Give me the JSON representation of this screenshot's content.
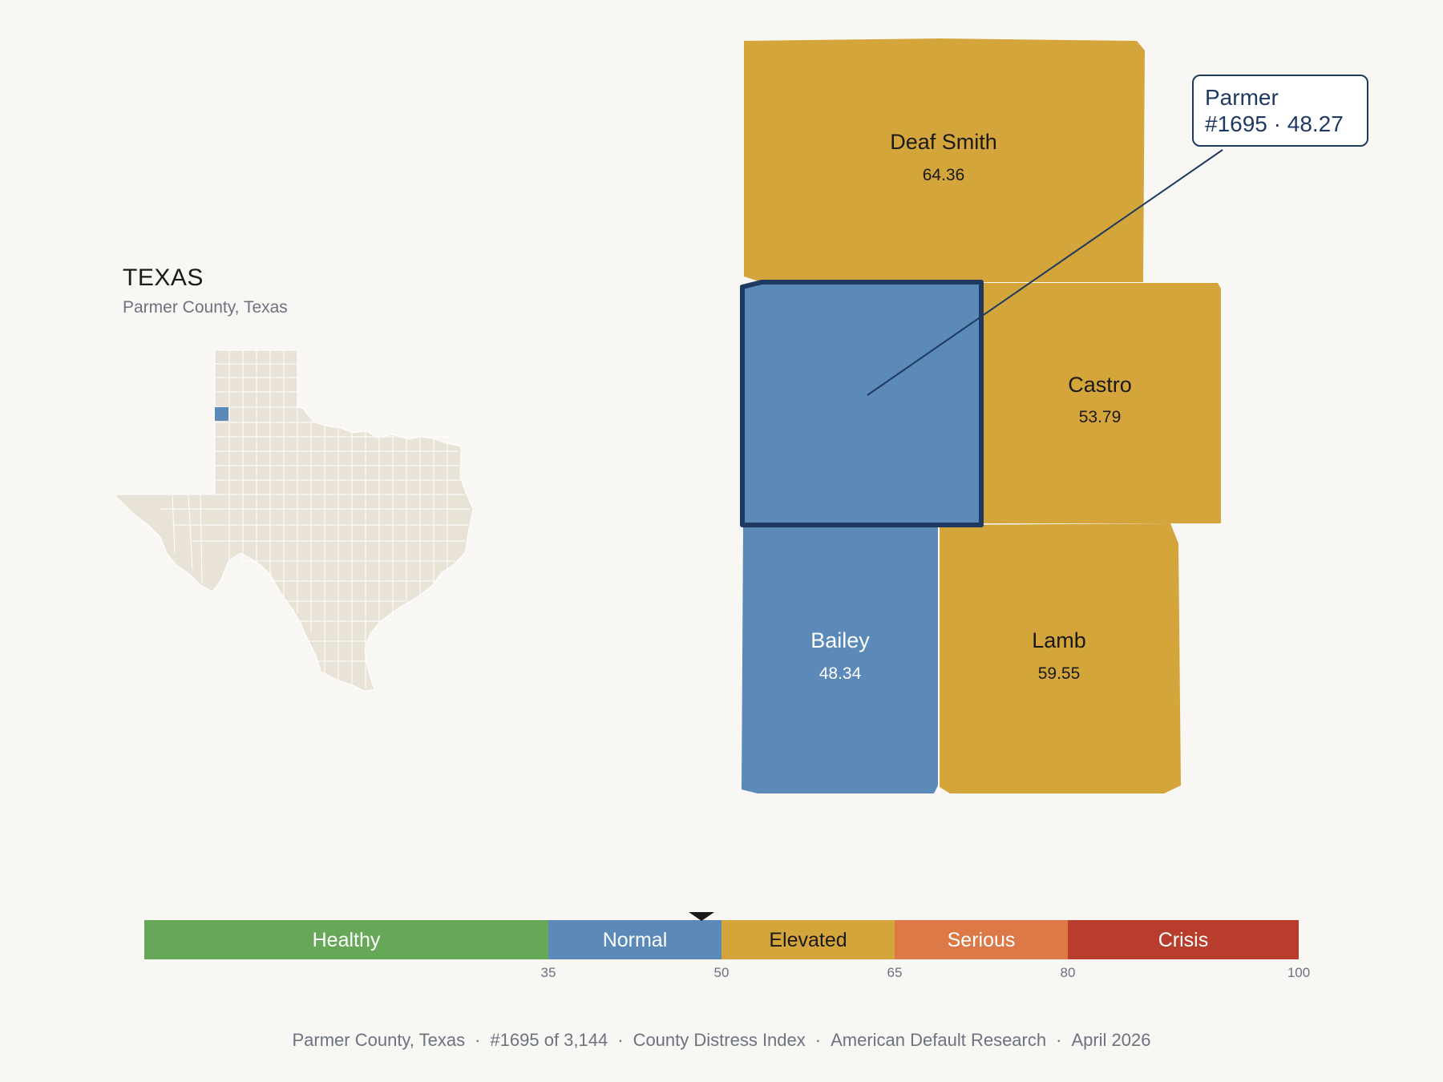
{
  "header": {
    "state": "TEXAS",
    "subtitle": "Parmer County, Texas"
  },
  "colors": {
    "background": "#f9f7f4",
    "normal": "#5b8ab9",
    "elevated": "#d4a53b",
    "healthy": "#66a758",
    "serious": "#dd7847",
    "crisis": "#b93d2c",
    "highlight_border": "#1f3a60",
    "inset_fill": "#e8e2d7"
  },
  "counties": [
    {
      "name": "Deaf Smith",
      "value": "64.36",
      "category": "Elevated"
    },
    {
      "name": "Castro",
      "value": "53.79",
      "category": "Elevated"
    },
    {
      "name": "Bailey",
      "value": "48.34",
      "category": "Normal"
    },
    {
      "name": "Lamb",
      "value": "59.55",
      "category": "Elevated"
    },
    {
      "name": "Parmer",
      "value": "48.27",
      "category": "Normal",
      "selected": true
    }
  ],
  "callout": {
    "line1": "Parmer",
    "line2": "#1695 · 48.27"
  },
  "scale": {
    "marker_value": 48.27,
    "segments": [
      {
        "label": "Healthy",
        "from": 0,
        "to": 35
      },
      {
        "label": "Normal",
        "from": 35,
        "to": 50
      },
      {
        "label": "Elevated",
        "from": 50,
        "to": 65
      },
      {
        "label": "Serious",
        "from": 65,
        "to": 80
      },
      {
        "label": "Crisis",
        "from": 80,
        "to": 100
      }
    ],
    "ticks": [
      "35",
      "50",
      "65",
      "80",
      "100"
    ]
  },
  "footer": {
    "county": "Parmer County, Texas",
    "rank": "#1695 of 3,144",
    "index": "County Distress Index",
    "org": "American Default Research",
    "date": "April 2026"
  }
}
